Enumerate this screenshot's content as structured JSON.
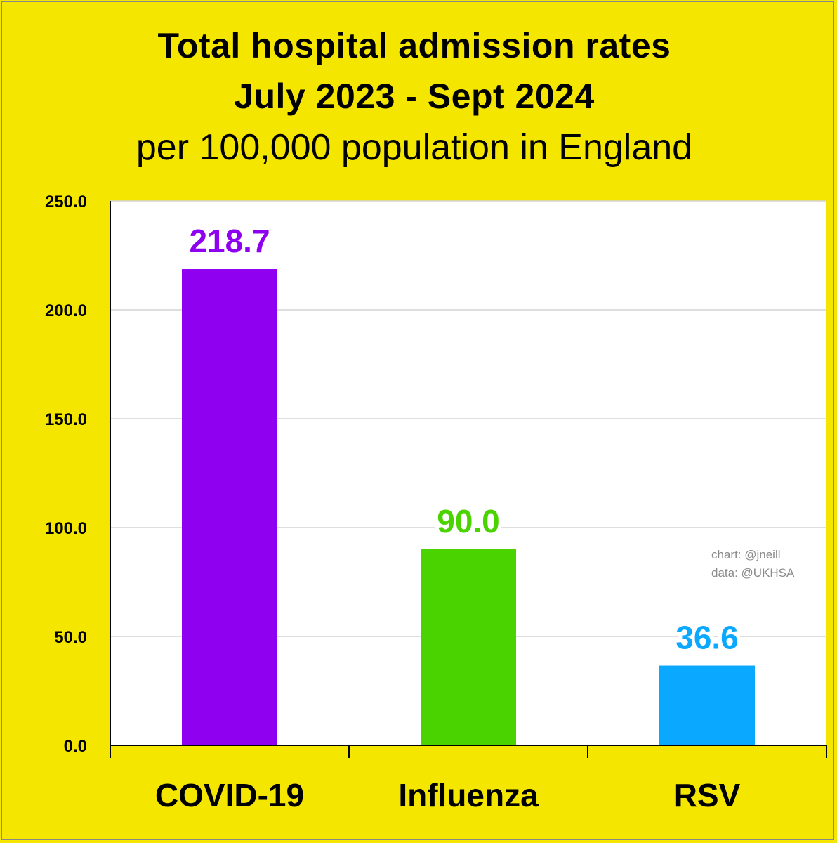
{
  "title": {
    "line1": "Total hospital admission rates",
    "line2": "July 2023 - Sept 2024",
    "line3": "per 100,000 population in England"
  },
  "credits": {
    "chart": "chart: @jneill",
    "data": "data: @UKHSA"
  },
  "colors": {
    "background": "#f5e600",
    "covid": "#8e00ef",
    "influenza": "#4bd300",
    "rsv": "#0aa8ff"
  },
  "chart_data": {
    "type": "bar",
    "title": "Total hospital admission rates July 2023 - Sept 2024",
    "subtitle": "per 100,000 population in England",
    "categories": [
      "COVID-19",
      "Influenza",
      "RSV"
    ],
    "values": [
      218.7,
      90.0,
      36.6
    ],
    "value_labels": [
      "218.7",
      "90.0",
      "36.6"
    ],
    "bar_colors": [
      "#8e00ef",
      "#4bd300",
      "#0aa8ff"
    ],
    "xlabel": "",
    "ylabel": "",
    "ylim": [
      0,
      250
    ],
    "yticks": [
      "0.0",
      "50.0",
      "100.0",
      "150.0",
      "200.0",
      "250.0"
    ],
    "ytick_values": [
      0,
      50,
      100,
      150,
      200,
      250
    ],
    "grid": true,
    "legend": "none"
  }
}
